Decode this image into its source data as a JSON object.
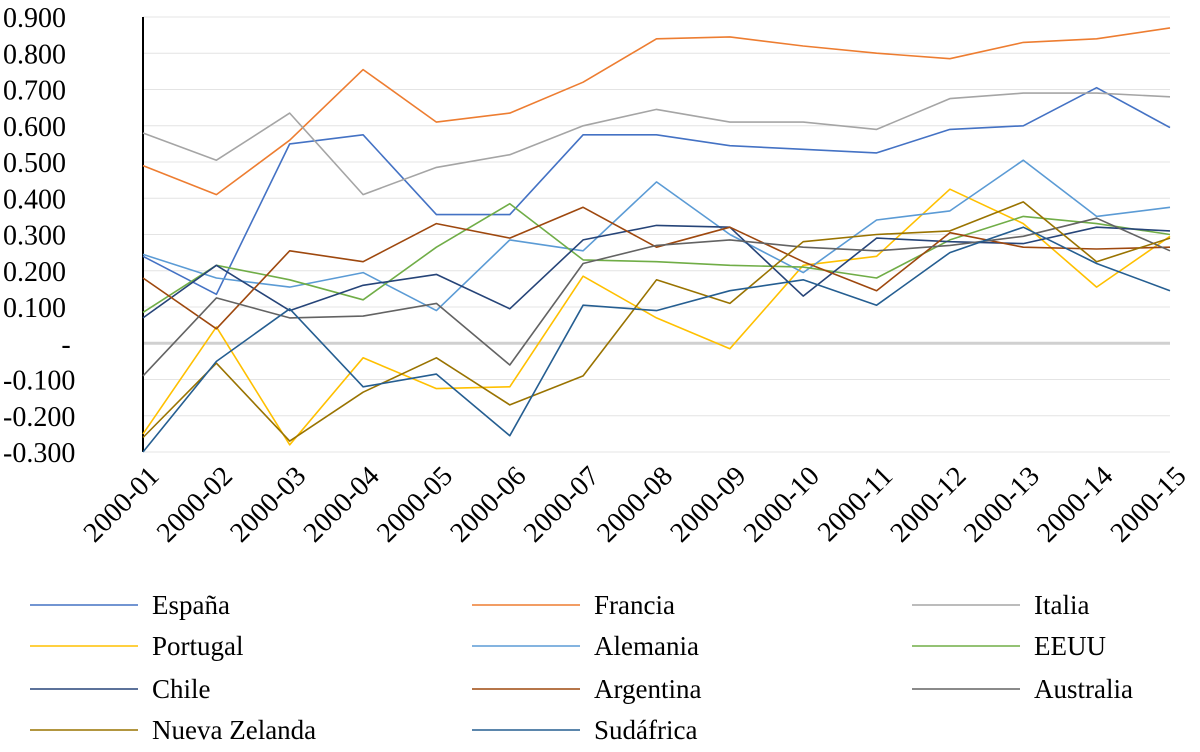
{
  "chart_data": {
    "type": "line",
    "title": "",
    "xlabel": "",
    "ylabel": "",
    "ylim": [
      -0.3,
      0.9
    ],
    "y_ticks": [
      0.9,
      0.8,
      0.7,
      0.6,
      0.5,
      0.4,
      0.3,
      0.2,
      0.1,
      0,
      -0.1,
      -0.2,
      -0.3
    ],
    "y_tick_labels": [
      "0.900",
      "0.800",
      "0.700",
      "0.600",
      "0.500",
      "0.400",
      "0.300",
      "0.200",
      "0.100",
      "-",
      "-0.100",
      "-0.200",
      "-0.300"
    ],
    "grid": true,
    "legend_position": "bottom",
    "categories": [
      "2000-01",
      "2000-02",
      "2000-03",
      "2000-04",
      "2000-05",
      "2000-06",
      "2000-07",
      "2000-08",
      "2000-09",
      "2000-10",
      "2000-11",
      "2000-12",
      "2000-13",
      "2000-14",
      "2000-15"
    ],
    "series": [
      {
        "name": "España",
        "color": "#4472C4",
        "values": [
          0.24,
          0.135,
          0.55,
          0.575,
          0.355,
          0.355,
          0.575,
          0.575,
          0.545,
          0.535,
          0.525,
          0.59,
          0.6,
          0.705,
          0.595
        ]
      },
      {
        "name": "Francia",
        "color": "#ED7D31",
        "values": [
          0.49,
          0.41,
          0.56,
          0.755,
          0.61,
          0.635,
          0.72,
          0.84,
          0.845,
          0.82,
          0.8,
          0.785,
          0.83,
          0.84,
          0.87
        ]
      },
      {
        "name": "Italia",
        "color": "#A5A5A5",
        "values": [
          0.58,
          0.505,
          0.635,
          0.41,
          0.485,
          0.52,
          0.6,
          0.645,
          0.61,
          0.61,
          0.59,
          0.675,
          0.69,
          0.69,
          0.68
        ]
      },
      {
        "name": "Portugal",
        "color": "#FFC000",
        "values": [
          -0.25,
          0.045,
          -0.28,
          -0.04,
          -0.125,
          -0.12,
          0.185,
          0.07,
          -0.015,
          0.215,
          0.24,
          0.425,
          0.33,
          0.155,
          0.295
        ]
      },
      {
        "name": "Alemania",
        "color": "#5B9BD5",
        "values": [
          0.245,
          0.18,
          0.155,
          0.195,
          0.09,
          0.285,
          0.255,
          0.445,
          0.3,
          0.195,
          0.34,
          0.365,
          0.505,
          0.35,
          0.375
        ]
      },
      {
        "name": "EEUU",
        "color": "#70AD47",
        "values": [
          0.085,
          0.215,
          0.175,
          0.12,
          0.265,
          0.385,
          0.23,
          0.225,
          0.215,
          0.21,
          0.18,
          0.285,
          0.35,
          0.33,
          0.3
        ]
      },
      {
        "name": "Chile",
        "color": "#264478",
        "values": [
          0.07,
          0.215,
          0.09,
          0.16,
          0.19,
          0.095,
          0.285,
          0.325,
          0.32,
          0.13,
          0.29,
          0.28,
          0.275,
          0.32,
          0.31
        ]
      },
      {
        "name": "Argentina",
        "color": "#9E480E",
        "values": [
          0.18,
          0.04,
          0.255,
          0.225,
          0.33,
          0.29,
          0.375,
          0.265,
          0.32,
          0.225,
          0.145,
          0.305,
          0.265,
          0.26,
          0.265
        ]
      },
      {
        "name": "Australia",
        "color": "#636363",
        "values": [
          -0.09,
          0.125,
          0.07,
          0.075,
          0.11,
          -0.06,
          0.22,
          0.27,
          0.285,
          0.265,
          0.255,
          0.27,
          0.295,
          0.345,
          0.255
        ]
      },
      {
        "name": "Nueva Zelanda",
        "color": "#997300",
        "values": [
          -0.26,
          -0.055,
          -0.27,
          -0.135,
          -0.04,
          -0.17,
          -0.09,
          0.175,
          0.11,
          0.28,
          0.3,
          0.31,
          0.39,
          0.225,
          0.29
        ]
      },
      {
        "name": "Sudáfrica",
        "color": "#255E91",
        "values": [
          -0.3,
          -0.05,
          0.095,
          -0.12,
          -0.085,
          -0.255,
          0.105,
          0.09,
          0.145,
          0.175,
          0.105,
          0.25,
          0.32,
          0.22,
          0.145
        ]
      }
    ]
  }
}
